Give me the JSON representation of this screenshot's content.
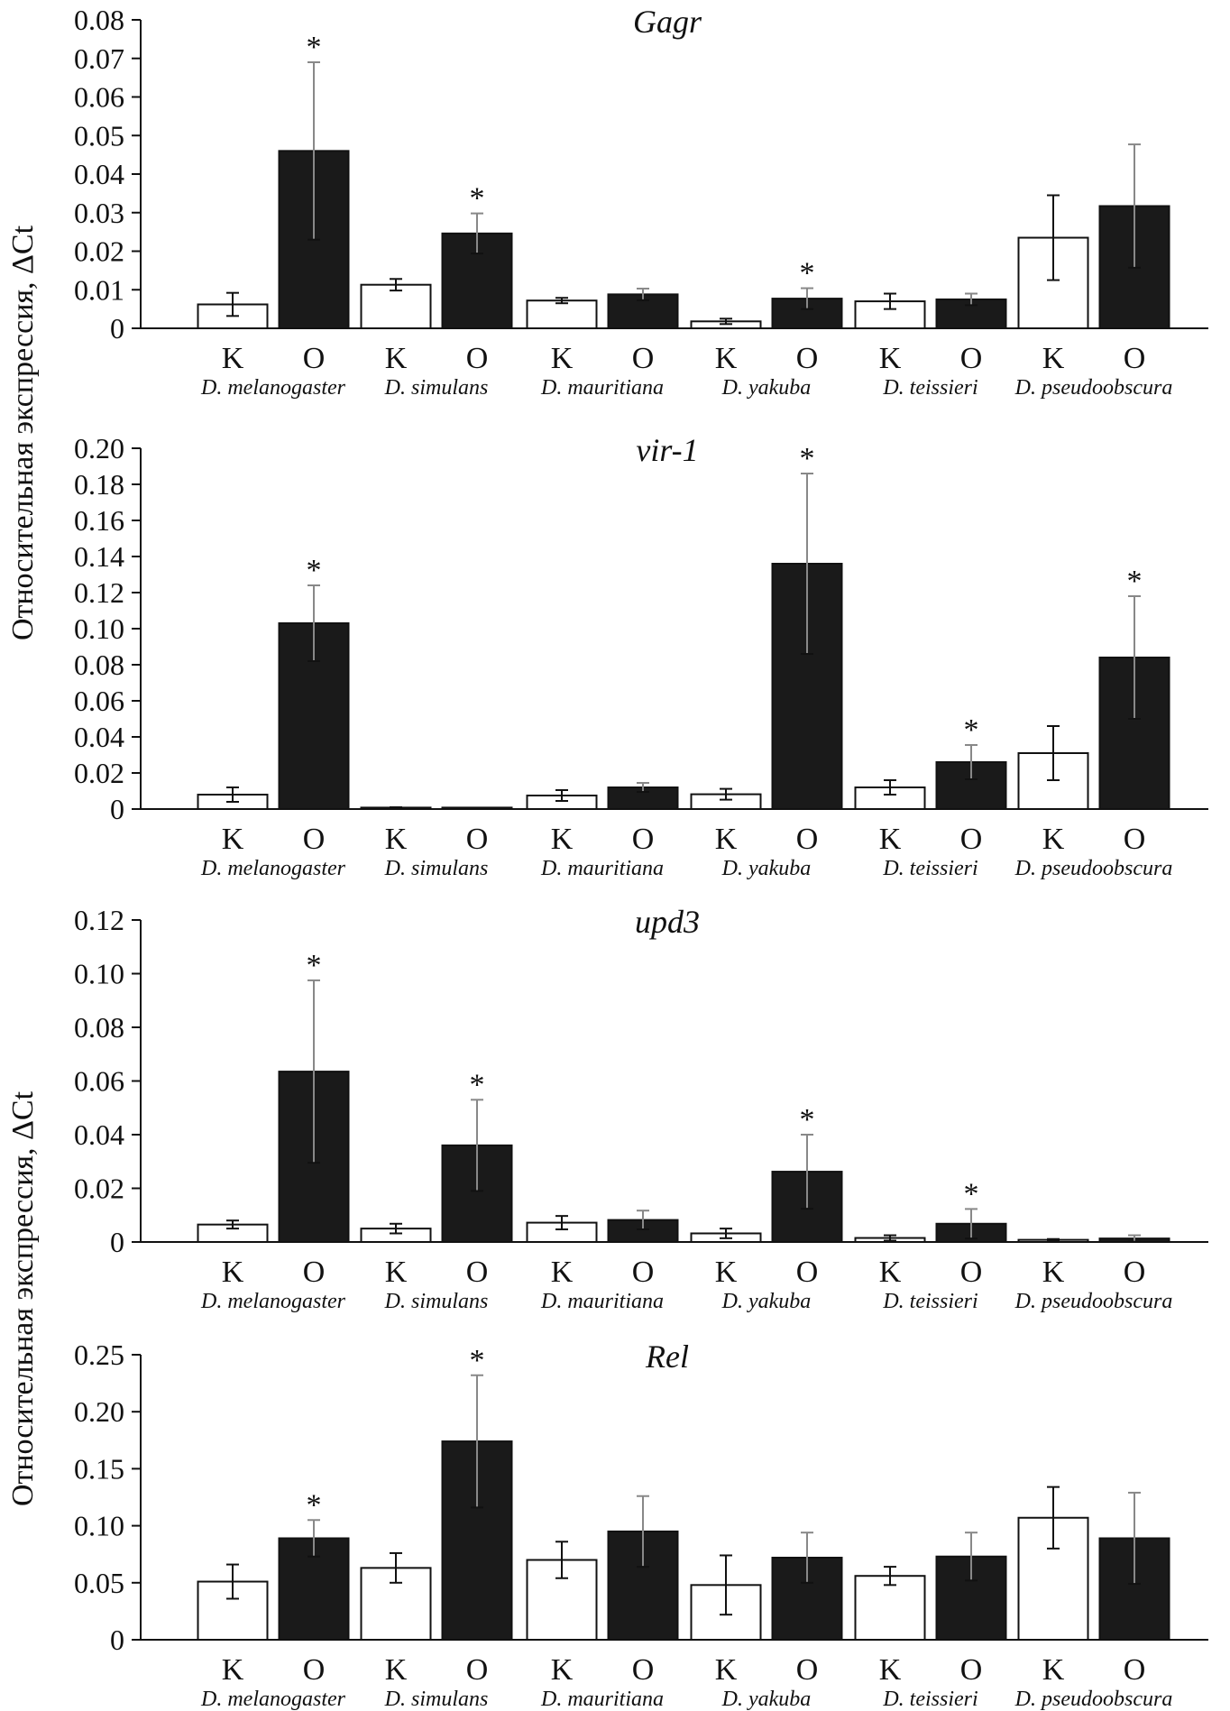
{
  "figure": {
    "ylabel": "Относительная экспрессия, ΔCt",
    "species": [
      "D. melanogaster",
      "D. simulans",
      "D. mauritiana",
      "D. yakuba",
      "D. teissieri",
      "D. pseudoobscura"
    ],
    "group_labels": [
      "K",
      "O"
    ]
  },
  "colors": {
    "K": "#ffffff",
    "O": "#1a1a1a",
    "error_bar": "#888888",
    "axis": "#111111"
  },
  "chart_data": [
    {
      "type": "bar",
      "title": "Gagr",
      "categories": [
        "K",
        "O",
        "K",
        "O",
        "K",
        "O",
        "K",
        "O",
        "K",
        "O",
        "K",
        "O"
      ],
      "values": [
        0.0062,
        0.046,
        0.0113,
        0.0246,
        0.0072,
        0.0088,
        0.0018,
        0.0077,
        0.007,
        0.0075,
        0.0235,
        0.0317
      ],
      "errors": [
        0.003,
        0.023,
        0.0015,
        0.0052,
        0.0007,
        0.0015,
        0.0007,
        0.0027,
        0.002,
        0.0015,
        0.011,
        0.016
      ],
      "significant": [
        false,
        true,
        false,
        true,
        false,
        false,
        false,
        true,
        false,
        false,
        false,
        false
      ],
      "ylim": [
        0,
        0.08
      ],
      "yticks": [
        "0",
        "0.01",
        "0.02",
        "0.03",
        "0.04",
        "0.05",
        "0.06",
        "0.07",
        "0.08"
      ]
    },
    {
      "type": "bar",
      "title": "vir-1",
      "categories": [
        "K",
        "O",
        "K",
        "O",
        "K",
        "O",
        "K",
        "O",
        "K",
        "O",
        "K",
        "O"
      ],
      "values": [
        0.008,
        0.103,
        0.0008,
        0.0008,
        0.0075,
        0.012,
        0.0082,
        0.136,
        0.012,
        0.026,
        0.031,
        0.084
      ],
      "errors": [
        0.004,
        0.021,
        0.0002,
        0.0002,
        0.003,
        0.0025,
        0.003,
        0.05,
        0.004,
        0.0095,
        0.015,
        0.034
      ],
      "significant": [
        false,
        true,
        false,
        false,
        false,
        false,
        false,
        true,
        false,
        true,
        false,
        true
      ],
      "ylim": [
        0,
        0.2
      ],
      "yticks": [
        "0",
        "0.02",
        "0.04",
        "0.06",
        "0.08",
        "0.10",
        "0.12",
        "0.14",
        "0.16",
        "0.18",
        "0.20"
      ]
    },
    {
      "type": "bar",
      "title": "upd3",
      "categories": [
        "K",
        "O",
        "K",
        "O",
        "K",
        "O",
        "K",
        "O",
        "K",
        "O",
        "K",
        "O"
      ],
      "values": [
        0.0065,
        0.0635,
        0.005,
        0.036,
        0.0072,
        0.0082,
        0.0032,
        0.0262,
        0.0015,
        0.0068,
        0.0008,
        0.0013
      ],
      "errors": [
        0.0015,
        0.034,
        0.0018,
        0.017,
        0.0025,
        0.0035,
        0.0018,
        0.0138,
        0.001,
        0.0055,
        0.0003,
        0.0012
      ],
      "significant": [
        false,
        true,
        false,
        true,
        false,
        false,
        false,
        true,
        false,
        true,
        false,
        false
      ],
      "ylim": [
        0,
        0.12
      ],
      "yticks": [
        "0",
        "0.02",
        "0.04",
        "0.06",
        "0.08",
        "0.10",
        "0.12"
      ]
    },
    {
      "type": "bar",
      "title": "Rel",
      "categories": [
        "K",
        "O",
        "K",
        "O",
        "K",
        "O",
        "K",
        "O",
        "K",
        "O",
        "K",
        "O"
      ],
      "values": [
        0.051,
        0.089,
        0.063,
        0.174,
        0.07,
        0.095,
        0.048,
        0.072,
        0.056,
        0.073,
        0.107,
        0.089
      ],
      "errors": [
        0.015,
        0.016,
        0.013,
        0.058,
        0.016,
        0.031,
        0.026,
        0.022,
        0.008,
        0.021,
        0.027,
        0.04
      ],
      "significant": [
        false,
        true,
        false,
        true,
        false,
        false,
        false,
        false,
        false,
        false,
        false,
        false
      ],
      "ylim": [
        0,
        0.25
      ],
      "yticks": [
        "0",
        "0.05",
        "0.10",
        "0.15",
        "0.20",
        "0.25"
      ]
    }
  ]
}
